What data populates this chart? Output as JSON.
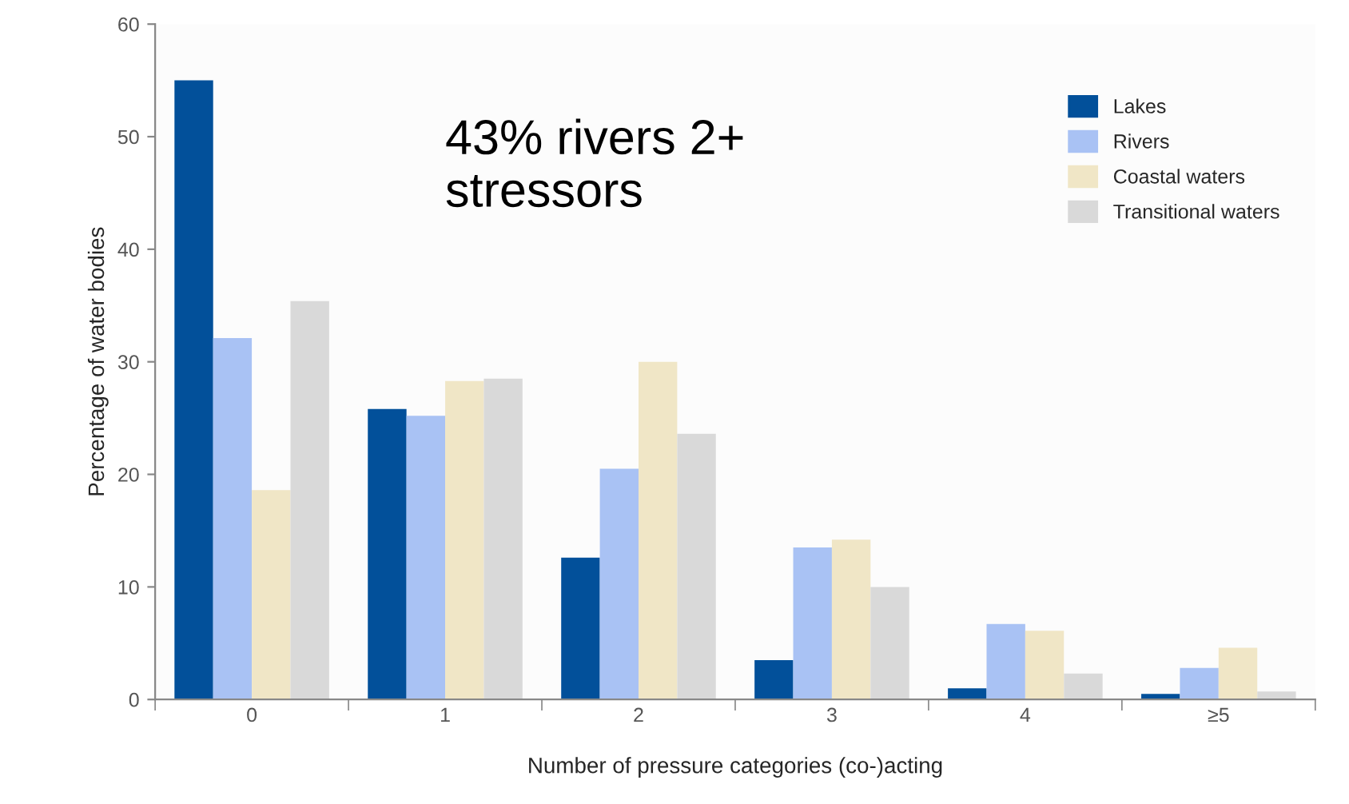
{
  "chart_data": {
    "type": "bar",
    "xlabel": "Number of pressure categories (co-)acting",
    "ylabel": "Percentage of water bodies",
    "categories": [
      "0",
      "1",
      "2",
      "3",
      "4",
      "≥5"
    ],
    "series": [
      {
        "name": "Lakes",
        "color": "#02509a",
        "values": [
          55,
          25.8,
          12.6,
          3.5,
          1.0,
          0.5
        ]
      },
      {
        "name": "Rivers",
        "color": "#a9c2f4",
        "values": [
          32.1,
          25.2,
          20.5,
          13.5,
          6.7,
          2.8
        ]
      },
      {
        "name": "Coastal waters",
        "color": "#f0e6c6",
        "values": [
          18.6,
          28.3,
          30,
          14.2,
          6.1,
          4.6
        ]
      },
      {
        "name": "Transitional waters",
        "color": "#d9d9d9",
        "values": [
          35.4,
          28.5,
          23.6,
          10.0,
          2.3,
          0.7
        ]
      }
    ],
    "ylim": [
      0,
      60
    ],
    "yticks": [
      0,
      10,
      20,
      30,
      40,
      50,
      60
    ],
    "grid": false,
    "legend": "top right",
    "annotations": [
      "43% rivers 2+\nstressors"
    ]
  }
}
